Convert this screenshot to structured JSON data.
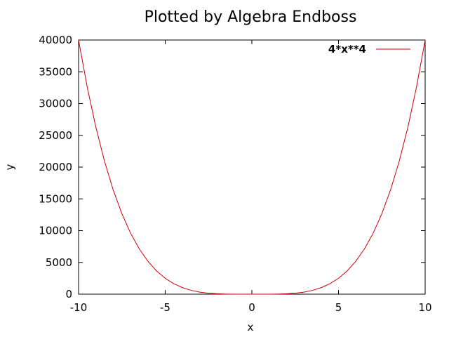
{
  "chart_data": {
    "type": "line",
    "title": "Plotted by Algebra Endboss",
    "xlabel": "x",
    "ylabel": "y",
    "xlim": [
      -10,
      10
    ],
    "ylim": [
      0,
      40000
    ],
    "xticks": [
      -10,
      -5,
      0,
      5,
      10
    ],
    "xtick_labels": [
      "-10",
      "-5",
      "0",
      "5",
      "10"
    ],
    "yticks": [
      0,
      5000,
      10000,
      15000,
      20000,
      25000,
      30000,
      35000,
      40000
    ],
    "ytick_labels": [
      "0",
      "5000",
      "10000",
      "15000",
      "20000",
      "25000",
      "30000",
      "35000",
      "40000"
    ],
    "grid": false,
    "legend_position": "top-right",
    "series": [
      {
        "name": "4*x**4",
        "color": "#cc0000",
        "x": [
          -10,
          -9.5,
          -9,
          -8.5,
          -8,
          -7.5,
          -7,
          -6.5,
          -6,
          -5.5,
          -5,
          -4.5,
          -4,
          -3.5,
          -3,
          -2.5,
          -2,
          -1.5,
          -1,
          -0.5,
          0,
          0.5,
          1,
          1.5,
          2,
          2.5,
          3,
          3.5,
          4,
          4.5,
          5,
          5.5,
          6,
          6.5,
          7,
          7.5,
          8,
          8.5,
          9,
          9.5,
          10
        ],
        "y": [
          40000,
          32580.25,
          26244,
          20880.25,
          16384,
          12656.25,
          9604,
          7140.25,
          5184,
          3660.25,
          2500,
          1640.25,
          1024,
          600.25,
          324,
          156.25,
          64,
          20.25,
          4,
          0.25,
          0,
          0.25,
          4,
          20.25,
          64,
          156.25,
          324,
          600.25,
          1024,
          1640.25,
          2500,
          3660.25,
          5184,
          7140.25,
          9604,
          12656.25,
          16384,
          20880.25,
          26244,
          32580.25,
          40000
        ]
      }
    ]
  }
}
